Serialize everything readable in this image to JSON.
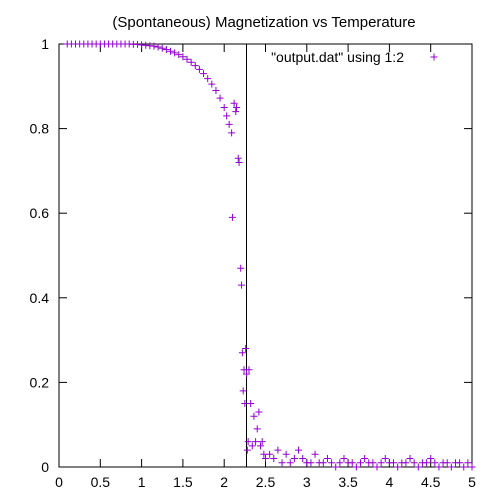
{
  "chart_data": {
    "type": "scatter",
    "title": "(Spontaneous) Magnetization vs Temperature",
    "xlabel": "",
    "ylabel": "",
    "xlim": [
      0,
      5
    ],
    "ylim": [
      0,
      1
    ],
    "xticks": [
      "0",
      "0.5",
      "1",
      "1.5",
      "2",
      "2.5",
      "3",
      "3.5",
      "4",
      "4.5",
      "5"
    ],
    "yticks": [
      "0",
      "0.2",
      "0.4",
      "0.6",
      "0.8",
      "1"
    ],
    "grid": false,
    "legend": {
      "position": "top-right",
      "entries": [
        "\"output.dat\" using 1:2"
      ]
    },
    "vertical_line_x": 2.27,
    "series": [
      {
        "name": "\"output.dat\" using 1:2",
        "marker": "+",
        "color": "#9400d3",
        "x": [
          0.1,
          0.15,
          0.2,
          0.25,
          0.3,
          0.35,
          0.4,
          0.45,
          0.5,
          0.55,
          0.6,
          0.65,
          0.7,
          0.75,
          0.8,
          0.85,
          0.9,
          0.95,
          1.0,
          1.05,
          1.1,
          1.15,
          1.2,
          1.25,
          1.3,
          1.35,
          1.4,
          1.45,
          1.5,
          1.55,
          1.6,
          1.65,
          1.7,
          1.75,
          1.8,
          1.85,
          1.9,
          1.95,
          2.0,
          2.03,
          2.06,
          2.09,
          2.12,
          2.15,
          2.1,
          2.14,
          2.17,
          2.18,
          2.2,
          2.21,
          2.22,
          2.23,
          2.24,
          2.25,
          2.26,
          2.27,
          2.28,
          2.29,
          2.3,
          2.32,
          2.34,
          2.36,
          2.38,
          2.4,
          2.42,
          2.44,
          2.46,
          2.48,
          2.5,
          2.55,
          2.6,
          2.65,
          2.7,
          2.75,
          2.8,
          2.85,
          2.9,
          2.95,
          3.0,
          3.05,
          3.1,
          3.15,
          3.2,
          3.25,
          3.3,
          3.35,
          3.4,
          3.45,
          3.5,
          3.55,
          3.6,
          3.65,
          3.7,
          3.75,
          3.8,
          3.85,
          3.9,
          3.95,
          4.0,
          4.05,
          4.1,
          4.15,
          4.2,
          4.25,
          4.3,
          4.35,
          4.4,
          4.45,
          4.5,
          4.55,
          4.6,
          4.65,
          4.7,
          4.75,
          4.8,
          4.85,
          4.9,
          4.95,
          5.0
        ],
        "y": [
          1.0,
          1.0,
          1.0,
          1.0,
          1.0,
          1.0,
          1.0,
          1.0,
          1.0,
          1.0,
          1.0,
          1.0,
          1.0,
          1.0,
          1.0,
          1.0,
          0.999,
          0.999,
          0.998,
          0.997,
          0.996,
          0.995,
          0.993,
          0.99,
          0.987,
          0.983,
          0.979,
          0.975,
          0.97,
          0.964,
          0.957,
          0.949,
          0.94,
          0.93,
          0.918,
          0.905,
          0.89,
          0.872,
          0.85,
          0.83,
          0.81,
          0.79,
          0.86,
          0.85,
          0.59,
          0.84,
          0.73,
          0.72,
          0.47,
          0.43,
          0.27,
          0.18,
          0.23,
          0.15,
          0.28,
          0.22,
          0.04,
          0.06,
          0.23,
          0.15,
          0.05,
          0.12,
          0.06,
          0.09,
          0.13,
          0.05,
          0.06,
          0.03,
          0.02,
          0.03,
          0.02,
          0.04,
          0.01,
          0.03,
          0.01,
          0.02,
          0.04,
          0.02,
          0.01,
          0.01,
          0.03,
          0.01,
          0.01,
          0.02,
          0.01,
          0.0,
          0.01,
          0.02,
          0.01,
          0.01,
          0.0,
          0.01,
          0.02,
          0.01,
          0.01,
          0.0,
          0.01,
          0.02,
          0.01,
          0.01,
          0.0,
          0.01,
          0.01,
          0.02,
          0.01,
          0.0,
          0.01,
          0.01,
          0.02,
          0.01,
          0.0,
          0.01,
          0.01,
          0.0,
          0.01,
          0.01,
          0.0,
          0.01,
          0.0
        ]
      }
    ]
  }
}
